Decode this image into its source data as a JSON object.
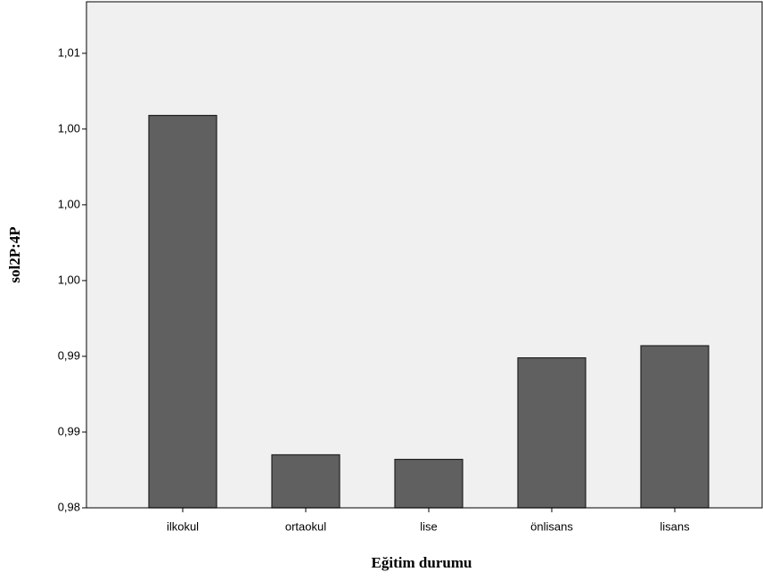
{
  "chart_data": {
    "type": "bar",
    "x_label": "Eğitim durumu",
    "y_label": "sol2P:4P",
    "categories": [
      "ilkokul",
      "ortaokul",
      "lise",
      "önlisans",
      "lisans"
    ],
    "values": [
      1.0059,
      0.9835,
      0.9832,
      0.9899,
      0.9907
    ],
    "color": "#606060",
    "ylim": [
      0.98,
      1.0134
    ],
    "yticks": [
      {
        "value": 0.98,
        "label": "0,98"
      },
      {
        "value": 0.985,
        "label": "0,99"
      },
      {
        "value": 0.99,
        "label": "0,99"
      },
      {
        "value": 0.995,
        "label": "1,00"
      },
      {
        "value": 1.0,
        "label": "1,00"
      },
      {
        "value": 1.005,
        "label": "1,00"
      },
      {
        "value": 1.01,
        "label": "1,01"
      }
    ],
    "grid": false
  }
}
